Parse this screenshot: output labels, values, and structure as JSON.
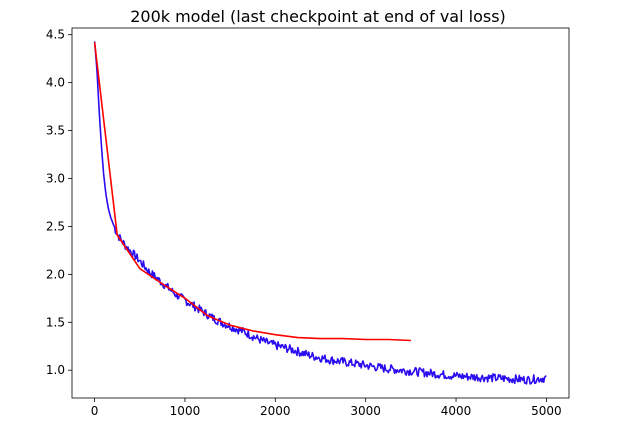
{
  "chart_data": {
    "type": "line",
    "title": "200k model (last checkpoint at end of val loss)",
    "xlabel": "",
    "ylabel": "",
    "xlim": [
      -250,
      5250
    ],
    "ylim": [
      0.71,
      4.57
    ],
    "xticks": [
      0,
      1000,
      2000,
      3000,
      4000,
      5000
    ],
    "yticks": [
      1.0,
      1.5,
      2.0,
      2.5,
      3.0,
      3.5,
      4.0,
      4.5
    ],
    "grid": false,
    "legend": "none",
    "series": [
      {
        "color": "#2a0cf0",
        "noisy": true,
        "x": [
          0,
          25,
          50,
          75,
          100,
          125,
          150,
          175,
          200,
          250,
          300,
          350,
          400,
          450,
          500,
          600,
          700,
          800,
          900,
          1000,
          1100,
          1200,
          1300,
          1400,
          1500,
          1600,
          1700,
          1800,
          1900,
          2000,
          2200,
          2400,
          2600,
          2800,
          3000,
          3200,
          3400,
          3600,
          3800,
          4000,
          4200,
          4400,
          4600,
          4800,
          5000
        ],
        "y": [
          4.43,
          4.15,
          3.72,
          3.35,
          3.05,
          2.84,
          2.7,
          2.6,
          2.54,
          2.42,
          2.35,
          2.29,
          2.24,
          2.19,
          2.14,
          2.03,
          1.95,
          1.87,
          1.79,
          1.73,
          1.67,
          1.61,
          1.55,
          1.5,
          1.46,
          1.42,
          1.38,
          1.33,
          1.29,
          1.26,
          1.21,
          1.15,
          1.11,
          1.08,
          1.05,
          1.02,
          1.0,
          0.98,
          0.96,
          0.94,
          0.93,
          0.92,
          0.91,
          0.9,
          0.92
        ]
      },
      {
        "color": "#ff0000",
        "noisy": false,
        "x": [
          0,
          250,
          500,
          750,
          1000,
          1250,
          1500,
          1750,
          2000,
          2250,
          2500,
          2750,
          3000,
          3250,
          3500
        ],
        "y": [
          4.42,
          2.41,
          2.06,
          1.9,
          1.75,
          1.57,
          1.47,
          1.41,
          1.37,
          1.34,
          1.33,
          1.33,
          1.32,
          1.32,
          1.31
        ]
      }
    ]
  }
}
